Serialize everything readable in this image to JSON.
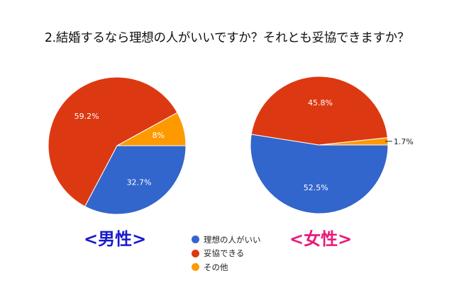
{
  "title": "2.結婚するなら理想の人がいいですか？それとも妥協できますか？",
  "colors": {
    "ideal": "#3366cc",
    "compromise": "#dc3912",
    "other": "#ff9900"
  },
  "legend": [
    {
      "label": "理想の人がいい",
      "color": "#3366cc"
    },
    {
      "label": "妥協できる",
      "color": "#dc3912"
    },
    {
      "label": "その他",
      "color": "#ff9900"
    }
  ],
  "groups": {
    "male": {
      "label": "<男性>",
      "color": "#1a1acc"
    },
    "female": {
      "label": "<女性>",
      "color": "#e8197a"
    }
  },
  "chart_data": [
    {
      "type": "pie",
      "title": "<男性>",
      "categories": [
        "理想の人がいい",
        "妥協できる",
        "その他"
      ],
      "values": [
        32.7,
        59.2,
        8.0
      ],
      "labels": [
        "32.7%",
        "59.2%",
        "8%"
      ],
      "colors": [
        "#3366cc",
        "#dc3912",
        "#ff9900"
      ],
      "start_angle": "3 o'clock, clockwise",
      "legend_position": "bottom-center"
    },
    {
      "type": "pie",
      "title": "<女性>",
      "categories": [
        "理想の人がいい",
        "妥協できる",
        "その他"
      ],
      "values": [
        52.5,
        45.8,
        1.7
      ],
      "labels": [
        "52.5%",
        "45.8%",
        "1.7%"
      ],
      "colors": [
        "#3366cc",
        "#dc3912",
        "#ff9900"
      ],
      "start_angle": "3 o'clock, clockwise",
      "legend_position": "bottom-center"
    }
  ]
}
